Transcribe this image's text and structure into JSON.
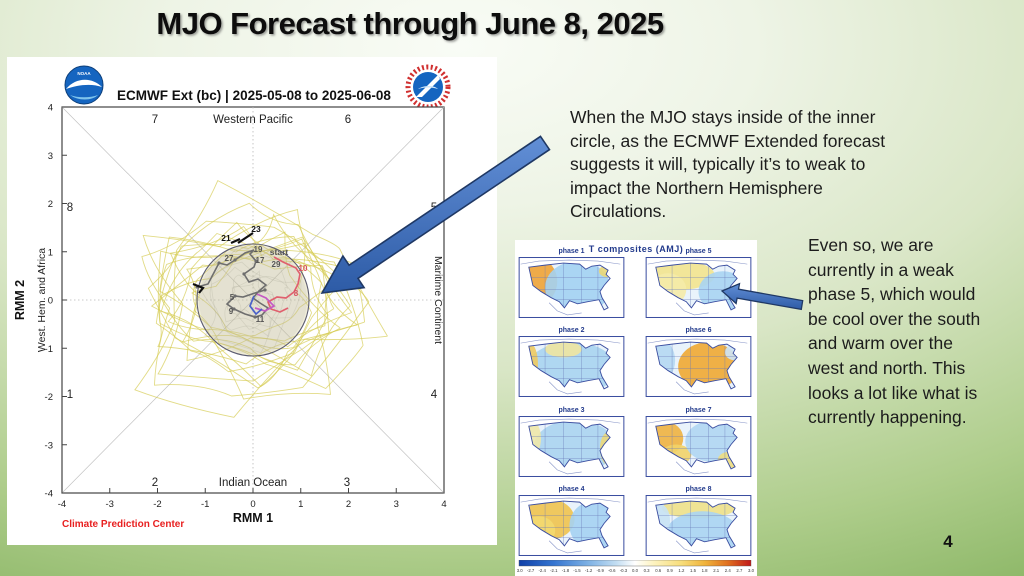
{
  "slide": {
    "title": "MJO Forecast through June 8, 2025",
    "page_number": "4"
  },
  "annotations": {
    "inner_circle": "When the MJO stays inside of the inner\ncircle, as the ECMWF Extended forecast\nsuggests it will, typically it’s to weak to\nimpact the Northern Hemisphere\nCirculations.",
    "phase5": "Even so, we are\ncurrently in a weak\nphase 5, which would\nbe cool over the south\nand warm over the\nwest and north.  This\nlooks a lot like what is\ncurrently happening."
  },
  "mjo": {
    "title": "ECMWF Ext (bc) | 2025-05-08 to 2025-06-08",
    "credit": "Climate Prediction Center",
    "xlabel": "RMM 1",
    "ylabel": "RMM 2",
    "side_left": "West. Hem. and Africa",
    "side_right": "Maritime Continent",
    "region_top": "Western Pacific",
    "region_bottom": "Indian Ocean",
    "phase_top_left": "7",
    "phase_top_right": "6",
    "phase_left_upper": "8",
    "phase_right_upper": "5",
    "phase_left_lower": "1",
    "phase_right_lower": "4",
    "phase_bottom_left": "2",
    "phase_bottom_right": "3",
    "x_ticks": [
      "-4",
      "-3",
      "-2",
      "-1",
      "0",
      "1",
      "2",
      "3",
      "4"
    ],
    "y_ticks": [
      "4",
      "3",
      "2",
      "1",
      "0",
      "-1",
      "-2",
      "-3",
      "-4"
    ],
    "track_labels": [
      "start",
      "10",
      "8",
      "5",
      "9",
      "11",
      "17",
      "19",
      "21",
      "23",
      "27",
      "29"
    ],
    "logos": {
      "noaa": "noaa-logo",
      "nws": "national-weather-service-logo"
    }
  },
  "composites": {
    "title": "T composites (AMJ)",
    "colorbar_ticks": [
      "-3.0",
      "-2.7",
      "-2.4",
      "-2.1",
      "-1.8",
      "-1.5",
      "-1.2",
      "-0.9",
      "-0.6",
      "-0.3",
      "0.0",
      "0.3",
      "0.6",
      "0.9",
      "1.2",
      "1.5",
      "1.8",
      "2.1",
      "2.4",
      "2.7",
      "3.0"
    ],
    "phases": [
      {
        "label": "phase 1",
        "regions": [
          [
            20,
            24,
            18,
            22,
            "#f0a335"
          ],
          [
            58,
            30,
            32,
            26,
            "#a3d2f2"
          ],
          [
            88,
            14,
            9,
            6,
            "#ead775"
          ]
        ]
      },
      {
        "label": "phase 5",
        "regions": [
          [
            36,
            18,
            32,
            14,
            "#f3e48e"
          ],
          [
            22,
            32,
            18,
            16,
            "#f5eba8"
          ],
          [
            76,
            34,
            24,
            20,
            "#a8d4f2"
          ]
        ]
      },
      {
        "label": "phase 2",
        "regions": [
          [
            52,
            32,
            44,
            26,
            "#a8d4f0"
          ],
          [
            12,
            28,
            7,
            20,
            "#eeca60"
          ],
          [
            44,
            13,
            18,
            8,
            "#f0e5a0"
          ]
        ]
      },
      {
        "label": "phase 6",
        "regions": [
          [
            15,
            24,
            14,
            20,
            "#b5d8f2"
          ],
          [
            62,
            30,
            30,
            24,
            "#f0a832"
          ],
          [
            88,
            16,
            10,
            8,
            "#cde4f6"
          ]
        ]
      },
      {
        "label": "phase 3",
        "regions": [
          [
            55,
            30,
            40,
            26,
            "#abd4f0"
          ],
          [
            12,
            22,
            10,
            18,
            "#f0e8a8"
          ],
          [
            88,
            32,
            8,
            16,
            "#ecd878"
          ]
        ]
      },
      {
        "label": "phase 7",
        "regions": [
          [
            20,
            22,
            17,
            16,
            "#f0b240"
          ],
          [
            30,
            38,
            15,
            10,
            "#f2d368"
          ],
          [
            65,
            25,
            26,
            20,
            "#b0d6f2"
          ],
          [
            83,
            43,
            12,
            8,
            "#eedd80"
          ]
        ]
      },
      {
        "label": "phase 4",
        "regions": [
          [
            30,
            24,
            25,
            20,
            "#f0c34e"
          ],
          [
            20,
            35,
            16,
            14,
            "#f3d970"
          ],
          [
            74,
            30,
            24,
            24,
            "#a5d2f2"
          ]
        ]
      },
      {
        "label": "phase 8",
        "regions": [
          [
            52,
            13,
            36,
            10,
            "#f0e188"
          ],
          [
            56,
            38,
            36,
            22,
            "#aad4f2"
          ],
          [
            14,
            25,
            10,
            16,
            "#c8e2f4"
          ]
        ]
      }
    ]
  },
  "chart_data": {
    "type": "line",
    "title": "ECMWF Ext (bc) | 2025-05-08 to 2025-06-08",
    "xlabel": "RMM 1",
    "ylabel": "RMM 2",
    "xlim": [
      -4,
      4
    ],
    "ylim": [
      -4,
      4
    ],
    "phase_sectors": [
      "1",
      "2",
      "3",
      "4",
      "5",
      "6",
      "7",
      "8"
    ],
    "sector_regions": [
      "Western Pacific (top)",
      "Maritime Continent (right)",
      "Indian Ocean (bottom)",
      "West. Hem. and Africa (left)"
    ],
    "series": [
      {
        "name": "observed (recent, red/magenta)",
        "note": "short track near origin inside unit circle, day labels start, 10, 8"
      },
      {
        "name": "ensemble mean forecast (gray)",
        "note": "wanders inside unit circle, day labels 5, 9, 11, 17, 19, 21, 23, 27, 29"
      },
      {
        "name": "ensemble members (yellow spaghetti)",
        "note": "cloud surrounding unit circle, radius roughly 1 to 2.3"
      }
    ],
    "inner_circle_radius": 1
  }
}
